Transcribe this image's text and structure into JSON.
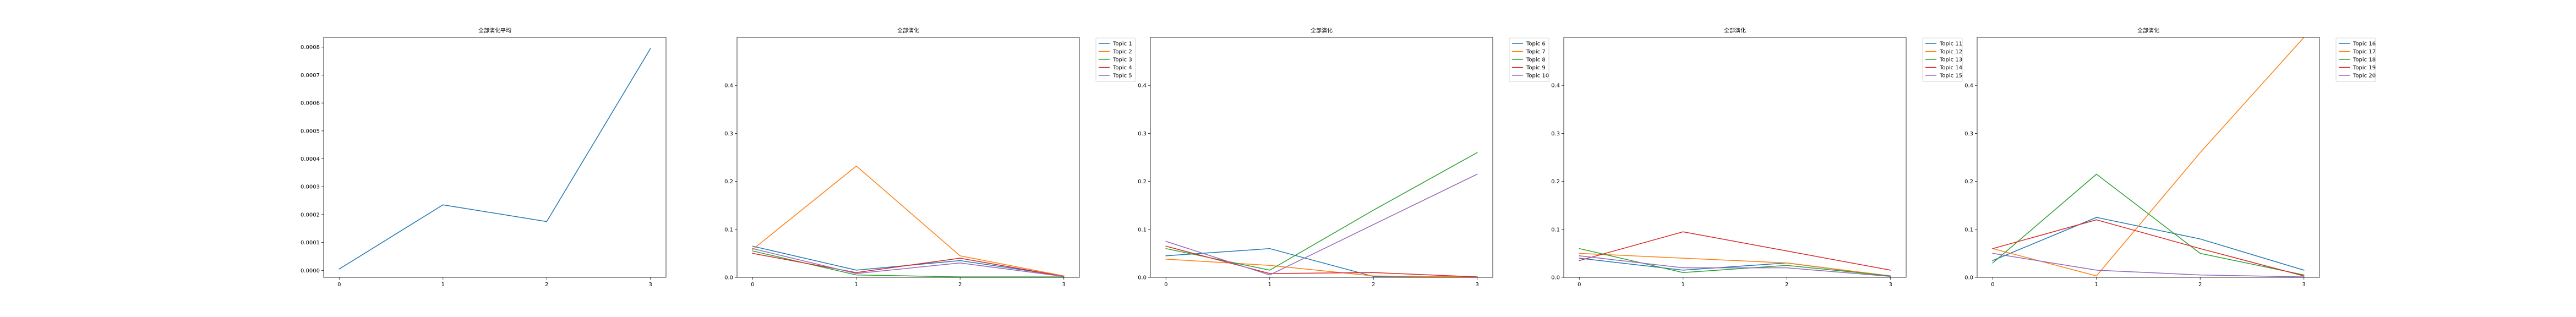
{
  "chart_data": [
    {
      "type": "line",
      "title": "全部演化平均",
      "x": [
        0,
        1,
        2,
        3
      ],
      "xticks": [
        "0",
        "1",
        "2",
        "3"
      ],
      "ylim": [
        -2.5e-05,
        0.000835
      ],
      "yticks": [
        "0.0000",
        "0.0001",
        "0.0002",
        "0.0003",
        "0.0004",
        "0.0005",
        "0.0006",
        "0.0007",
        "0.0008"
      ],
      "yticks_values": [
        0,
        0.0001,
        0.0002,
        0.0003,
        0.0004,
        0.0005,
        0.0006,
        0.0007,
        0.0008
      ],
      "legend": null,
      "series": [
        {
          "color": "#1f77b4",
          "values": [
            5e-06,
            0.000235,
            0.000175,
            0.000795
          ]
        }
      ]
    },
    {
      "type": "line",
      "title": "全部演化",
      "x": [
        0,
        1,
        2,
        3
      ],
      "xticks": [
        "0",
        "1",
        "2",
        "3"
      ],
      "ylim": [
        0,
        0.5
      ],
      "yticks": [
        "0.0",
        "0.1",
        "0.2",
        "0.3",
        "0.4"
      ],
      "yticks_values": [
        0,
        0.1,
        0.2,
        0.3,
        0.4
      ],
      "legend": "outside-upper-right",
      "series": [
        {
          "name": "Topic 1",
          "color": "#1f77b4",
          "values": [
            0.065,
            0.015,
            0.035,
            0.003
          ]
        },
        {
          "name": "Topic 2",
          "color": "#ff7f0e",
          "values": [
            0.058,
            0.232,
            0.045,
            0.003
          ]
        },
        {
          "name": "Topic 3",
          "color": "#2ca02c",
          "values": [
            0.055,
            0.005,
            0.001,
            0.001
          ]
        },
        {
          "name": "Topic 4",
          "color": "#d62728",
          "values": [
            0.05,
            0.01,
            0.04,
            0.002
          ]
        },
        {
          "name": "Topic 5",
          "color": "#9467bd",
          "values": [
            0.06,
            0.008,
            0.03,
            0.002
          ]
        }
      ]
    },
    {
      "type": "line",
      "title": "全部演化",
      "x": [
        0,
        1,
        2,
        3
      ],
      "xticks": [
        "0",
        "1",
        "2",
        "3"
      ],
      "ylim": [
        0,
        0.5
      ],
      "yticks": [
        "0.0",
        "0.1",
        "0.2",
        "0.3",
        "0.4"
      ],
      "yticks_values": [
        0,
        0.1,
        0.2,
        0.3,
        0.4
      ],
      "legend": "outside-upper-right",
      "series": [
        {
          "name": "Topic 6",
          "color": "#1f77b4",
          "values": [
            0.045,
            0.06,
            0.002,
            0.001
          ]
        },
        {
          "name": "Topic 7",
          "color": "#ff7f0e",
          "values": [
            0.038,
            0.025,
            0.003,
            0.001
          ]
        },
        {
          "name": "Topic 8",
          "color": "#2ca02c",
          "values": [
            0.06,
            0.015,
            0.14,
            0.26
          ]
        },
        {
          "name": "Topic 9",
          "color": "#d62728",
          "values": [
            0.065,
            0.008,
            0.01,
            0.001
          ]
        },
        {
          "name": "Topic 10",
          "color": "#9467bd",
          "values": [
            0.075,
            0.005,
            0.11,
            0.215
          ]
        }
      ]
    },
    {
      "type": "line",
      "title": "全部演化",
      "x": [
        0,
        1,
        2,
        3
      ],
      "xticks": [
        "0",
        "1",
        "2",
        "3"
      ],
      "ylim": [
        0,
        0.5
      ],
      "yticks": [
        "0.0",
        "0.1",
        "0.2",
        "0.3",
        "0.4"
      ],
      "yticks_values": [
        0,
        0.1,
        0.2,
        0.3,
        0.4
      ],
      "legend": "outside-upper-right",
      "series": [
        {
          "name": "Topic 11",
          "color": "#1f77b4",
          "values": [
            0.04,
            0.015,
            0.03,
            0.002
          ]
        },
        {
          "name": "Topic 12",
          "color": "#ff7f0e",
          "values": [
            0.05,
            0.04,
            0.03,
            0.003
          ]
        },
        {
          "name": "Topic 13",
          "color": "#2ca02c",
          "values": [
            0.06,
            0.01,
            0.025,
            0.003
          ]
        },
        {
          "name": "Topic 14",
          "color": "#d62728",
          "values": [
            0.035,
            0.095,
            0.055,
            0.015
          ]
        },
        {
          "name": "Topic 15",
          "color": "#9467bd",
          "values": [
            0.045,
            0.02,
            0.02,
            0.002
          ]
        }
      ]
    },
    {
      "type": "line",
      "title": "全部演化",
      "x": [
        0,
        1,
        2,
        3
      ],
      "xticks": [
        "0",
        "1",
        "2",
        "3"
      ],
      "ylim": [
        0,
        0.5
      ],
      "yticks": [
        "0.0",
        "0.1",
        "0.2",
        "0.3",
        "0.4"
      ],
      "yticks_values": [
        0,
        0.1,
        0.2,
        0.3,
        0.4
      ],
      "legend": "outside-upper-right",
      "series": [
        {
          "name": "Topic 16",
          "color": "#1f77b4",
          "values": [
            0.035,
            0.125,
            0.08,
            0.015
          ]
        },
        {
          "name": "Topic 17",
          "color": "#ff7f0e",
          "values": [
            0.06,
            0.003,
            0.26,
            0.5
          ]
        },
        {
          "name": "Topic 18",
          "color": "#2ca02c",
          "values": [
            0.03,
            0.215,
            0.05,
            0.005
          ]
        },
        {
          "name": "Topic 19",
          "color": "#d62728",
          "values": [
            0.06,
            0.12,
            0.06,
            0.003
          ]
        },
        {
          "name": "Topic 20",
          "color": "#9467bd",
          "values": [
            0.05,
            0.015,
            0.005,
            0.001
          ]
        }
      ]
    }
  ]
}
